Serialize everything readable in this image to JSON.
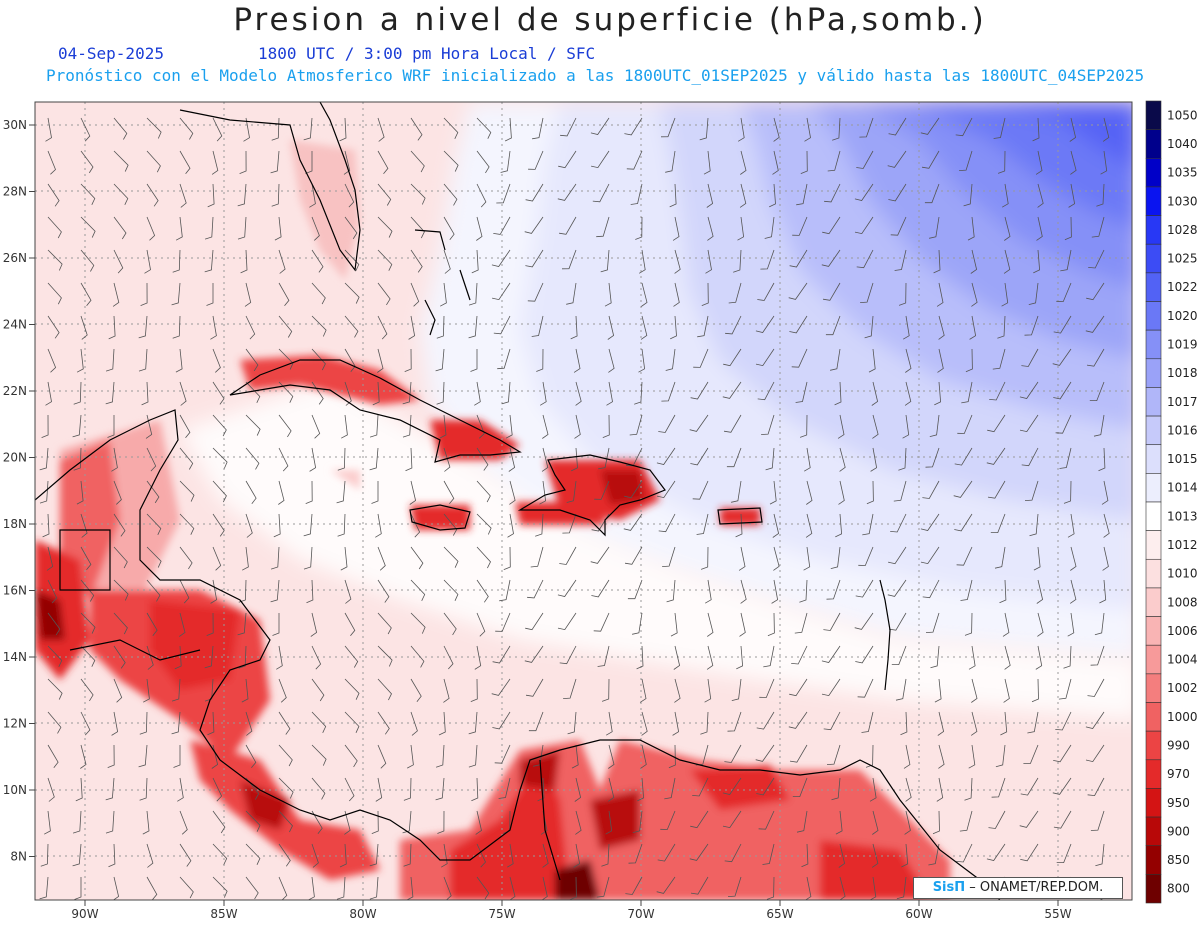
{
  "title": "Presion a nivel de superficie (hPa,somb.)",
  "date_label": "04-Sep-2025",
  "time_label": "1800 UTC / 3:00 pm Hora Local / SFC",
  "forecast_label": "Pronóstico con el Modelo Atmosferico WRF inicializado a las 1800UTC_01SEP2025 y válido hasta las  1800UTC_04SEP2025",
  "credit": {
    "logo": "SisΠ",
    "text": "ONAMET/REP.DOM."
  },
  "map": {
    "lon_labels": [
      "90W",
      "85W",
      "80W",
      "75W",
      "70W",
      "65W",
      "60W",
      "55W"
    ],
    "lat_labels": [
      "30N",
      "28N",
      "26N",
      "24N",
      "22N",
      "20N",
      "18N",
      "16N",
      "14N",
      "12N",
      "10N",
      "8N"
    ]
  },
  "colorbar": {
    "labels": [
      "1050",
      "1040",
      "1035",
      "1030",
      "1028",
      "1025",
      "1022",
      "1020",
      "1019",
      "1018",
      "1017",
      "1016",
      "1015",
      "1014",
      "1013",
      "1012",
      "1010",
      "1008",
      "1006",
      "1004",
      "1002",
      "1000",
      "990",
      "970",
      "950",
      "900",
      "850",
      "800"
    ],
    "colors": [
      "#0a0a4a",
      "#00008c",
      "#0000c8",
      "#0a14f0",
      "#2838f5",
      "#3c4cf5",
      "#5262f5",
      "#6a78f6",
      "#8590f7",
      "#9aa2f8",
      "#b0b6f9",
      "#c6cafa",
      "#dcdffc",
      "#eceefd",
      "#ffffff",
      "#fdeeee",
      "#fce0e0",
      "#fbcccc",
      "#f9b4b4",
      "#f79a9a",
      "#f47e7e",
      "#f06262",
      "#ec4444",
      "#e42a2a",
      "#d41414",
      "#b80808",
      "#940000",
      "#6e0000"
    ]
  }
}
